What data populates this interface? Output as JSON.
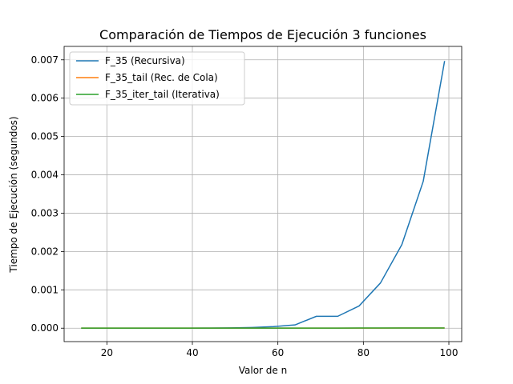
{
  "chart_data": {
    "type": "line",
    "title": "Comparación de Tiempos de Ejecución 3 funciones",
    "xlabel": "Valor de n",
    "ylabel": "Tiempo de Ejecución (segundos)",
    "xlim": [
      10,
      103
    ],
    "ylim": [
      -0.00035,
      0.00735
    ],
    "xticks": [
      20,
      40,
      60,
      80,
      100
    ],
    "yticks": [
      0.0,
      0.001,
      0.002,
      0.003,
      0.004,
      0.005,
      0.006,
      0.007
    ],
    "ytick_labels": [
      "0.000",
      "0.001",
      "0.002",
      "0.003",
      "0.004",
      "0.005",
      "0.006",
      "0.007"
    ],
    "xtick_labels": [
      "20",
      "40",
      "60",
      "80",
      "100"
    ],
    "grid": true,
    "legend_position": "top-left",
    "x": [
      14,
      19,
      24,
      29,
      34,
      39,
      44,
      49,
      54,
      59,
      64,
      69,
      74,
      79,
      84,
      89,
      94,
      99
    ],
    "series": [
      {
        "name": "F_35 (Recursiva)",
        "color": "#1f77b4",
        "values": [
          0.0,
          0.0,
          0.0,
          0.0,
          0.0,
          0.0,
          3e-06,
          8e-06,
          1.8e-05,
          4e-05,
          8.5e-05,
          0.00031,
          0.00031,
          0.00058,
          0.00118,
          0.00218,
          0.00383,
          0.00697
        ]
      },
      {
        "name": "F_35_tail (Rec. de Cola)",
        "color": "#ff7f0e",
        "values": [
          1e-06,
          1e-06,
          1e-06,
          1e-06,
          1e-06,
          2e-06,
          2e-06,
          2e-06,
          2e-06,
          2e-06,
          3e-06,
          3e-06,
          3e-06,
          3e-06,
          3e-06,
          4e-06,
          4e-06,
          4e-06
        ]
      },
      {
        "name": "F_35_iter_tail (Iterativa)",
        "color": "#2ca02c",
        "values": [
          1e-06,
          1e-06,
          1e-06,
          1e-06,
          2e-06,
          2e-06,
          2e-06,
          2e-06,
          2e-06,
          3e-06,
          3e-06,
          3e-06,
          3e-06,
          4e-06,
          4e-06,
          4e-06,
          5e-06,
          5e-06
        ]
      }
    ]
  }
}
